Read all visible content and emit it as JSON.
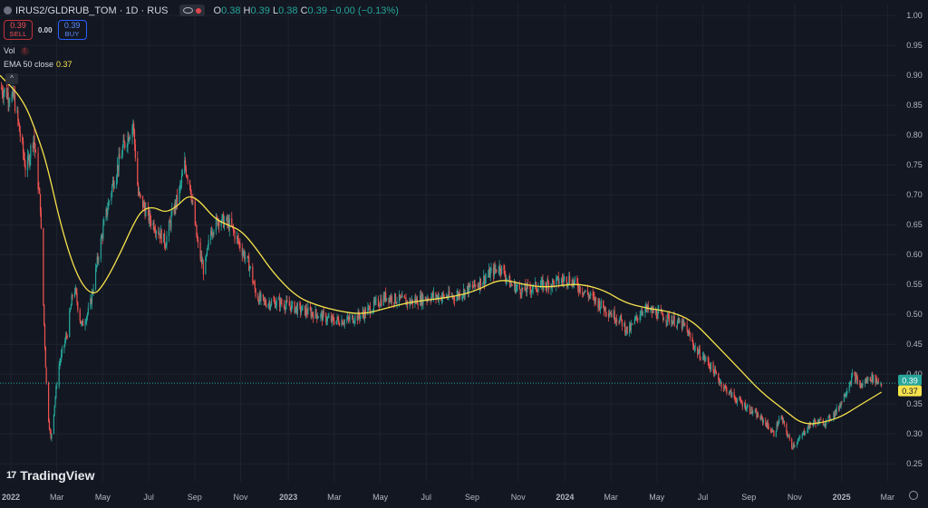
{
  "header": {
    "symbol": "IRUS2/GLDRUB_TOM · 1D · RUS",
    "ohlc": {
      "o_label": "O",
      "o_value": "0.38",
      "h_label": "H",
      "h_value": "0.39",
      "l_label": "L",
      "l_value": "0.38",
      "c_label": "C",
      "c_value": "0.39",
      "change": "−0.00 (−0.13%)"
    }
  },
  "trade": {
    "sell_price": "0.39",
    "sell_label": "SELL",
    "spread": "0.00",
    "buy_price": "0.39",
    "buy_label": "BUY"
  },
  "indicators": {
    "vol_label": "Vol",
    "vol_warning": "!",
    "ema_label": "EMA 50 close",
    "ema_value": "0.37"
  },
  "collapse_glyph": "^",
  "branding": {
    "logo_mark": "17",
    "logo_text": "TradingView"
  },
  "colors": {
    "background": "#131722",
    "grid": "#1e222d",
    "up": "#26a69a",
    "down": "#ef5350",
    "ema": "#f7e34c",
    "axis_text": "#b2b5be",
    "last_price_bg": "#26a69a",
    "ema_badge_bg": "#f7e34c"
  },
  "chart_data": {
    "type": "candlestick",
    "x_ticks": [
      "2022",
      "Mar",
      "May",
      "Jul",
      "Sep",
      "Nov",
      "2023",
      "Mar",
      "May",
      "Jul",
      "Sep",
      "Nov",
      "2024",
      "Mar",
      "May",
      "Jul",
      "Sep",
      "Nov",
      "2025",
      "Mar"
    ],
    "y_ticks": [
      "1.00",
      "0.95",
      "0.90",
      "0.85",
      "0.80",
      "0.75",
      "0.70",
      "0.65",
      "0.60",
      "0.55",
      "0.50",
      "0.45",
      "0.40",
      "0.35",
      "0.30",
      "0.25"
    ],
    "ylim": [
      0.22,
      1.02
    ],
    "x_start": "2022-01-01",
    "x_end": "2025-04-15",
    "last_price_label": "0.39",
    "ema_price_label": "0.37",
    "last_price": 0.385,
    "ema_last": 0.37,
    "price_path": [
      [
        "2022-01-01",
        0.88
      ],
      [
        "2022-01-20",
        0.86
      ],
      [
        "2022-02-05",
        0.74
      ],
      [
        "2022-02-15",
        0.8
      ],
      [
        "2022-02-24",
        0.68
      ],
      [
        "2022-02-27",
        0.55
      ],
      [
        "2022-03-05",
        0.35
      ],
      [
        "2022-03-10",
        0.29
      ],
      [
        "2022-03-20",
        0.41
      ],
      [
        "2022-04-01",
        0.47
      ],
      [
        "2022-04-10",
        0.55
      ],
      [
        "2022-04-20",
        0.48
      ],
      [
        "2022-05-01",
        0.51
      ],
      [
        "2022-05-10",
        0.58
      ],
      [
        "2022-05-20",
        0.65
      ],
      [
        "2022-06-01",
        0.72
      ],
      [
        "2022-06-15",
        0.78
      ],
      [
        "2022-06-28",
        0.82
      ],
      [
        "2022-07-05",
        0.7
      ],
      [
        "2022-07-20",
        0.66
      ],
      [
        "2022-08-01",
        0.64
      ],
      [
        "2022-08-10",
        0.62
      ],
      [
        "2022-08-20",
        0.67
      ],
      [
        "2022-08-28",
        0.7
      ],
      [
        "2022-09-05",
        0.75
      ],
      [
        "2022-09-12",
        0.72
      ],
      [
        "2022-09-22",
        0.62
      ],
      [
        "2022-10-01",
        0.57
      ],
      [
        "2022-10-10",
        0.64
      ],
      [
        "2022-10-20",
        0.66
      ],
      [
        "2022-11-05",
        0.65
      ],
      [
        "2022-11-20",
        0.61
      ],
      [
        "2022-12-01",
        0.58
      ],
      [
        "2022-12-10",
        0.53
      ],
      [
        "2022-12-20",
        0.52
      ],
      [
        "2023-01-10",
        0.52
      ],
      [
        "2023-02-01",
        0.51
      ],
      [
        "2023-03-01",
        0.5
      ],
      [
        "2023-03-20",
        0.49
      ],
      [
        "2023-04-10",
        0.49
      ],
      [
        "2023-05-01",
        0.5
      ],
      [
        "2023-06-01",
        0.53
      ],
      [
        "2023-07-01",
        0.52
      ],
      [
        "2023-08-01",
        0.53
      ],
      [
        "2023-09-01",
        0.53
      ],
      [
        "2023-10-01",
        0.55
      ],
      [
        "2023-10-20",
        0.57
      ],
      [
        "2023-11-01",
        0.58
      ],
      [
        "2023-11-15",
        0.55
      ],
      [
        "2023-12-01",
        0.54
      ],
      [
        "2024-01-01",
        0.55
      ],
      [
        "2024-02-01",
        0.56
      ],
      [
        "2024-02-20",
        0.54
      ],
      [
        "2024-03-20",
        0.51
      ],
      [
        "2024-04-10",
        0.49
      ],
      [
        "2024-04-20",
        0.47
      ],
      [
        "2024-05-10",
        0.51
      ],
      [
        "2024-06-01",
        0.5
      ],
      [
        "2024-06-20",
        0.49
      ],
      [
        "2024-07-05",
        0.48
      ],
      [
        "2024-07-20",
        0.44
      ],
      [
        "2024-08-05",
        0.42
      ],
      [
        "2024-08-25",
        0.38
      ],
      [
        "2024-09-10",
        0.36
      ],
      [
        "2024-10-01",
        0.34
      ],
      [
        "2024-10-20",
        0.32
      ],
      [
        "2024-11-01",
        0.3
      ],
      [
        "2024-11-10",
        0.33
      ],
      [
        "2024-11-25",
        0.28
      ],
      [
        "2024-12-05",
        0.29
      ],
      [
        "2024-12-15",
        0.31
      ],
      [
        "2024-12-25",
        0.32
      ],
      [
        "2025-01-10",
        0.32
      ],
      [
        "2025-01-25",
        0.34
      ],
      [
        "2025-02-05",
        0.37
      ],
      [
        "2025-02-15",
        0.4
      ],
      [
        "2025-02-25",
        0.38
      ],
      [
        "2025-03-10",
        0.395
      ],
      [
        "2025-03-25",
        0.385
      ]
    ],
    "ema_path": [
      [
        "2022-01-01",
        0.9
      ],
      [
        "2022-02-01",
        0.86
      ],
      [
        "2022-02-20",
        0.8
      ],
      [
        "2022-03-05",
        0.75
      ],
      [
        "2022-03-25",
        0.64
      ],
      [
        "2022-04-15",
        0.56
      ],
      [
        "2022-05-05",
        0.53
      ],
      [
        "2022-05-20",
        0.55
      ],
      [
        "2022-06-10",
        0.6
      ],
      [
        "2022-06-28",
        0.65
      ],
      [
        "2022-07-10",
        0.675
      ],
      [
        "2022-07-25",
        0.68
      ],
      [
        "2022-08-10",
        0.67
      ],
      [
        "2022-08-25",
        0.68
      ],
      [
        "2022-09-10",
        0.7
      ],
      [
        "2022-09-25",
        0.69
      ],
      [
        "2022-10-15",
        0.66
      ],
      [
        "2022-11-01",
        0.65
      ],
      [
        "2022-11-20",
        0.64
      ],
      [
        "2022-12-10",
        0.61
      ],
      [
        "2023-01-01",
        0.57
      ],
      [
        "2023-02-01",
        0.53
      ],
      [
        "2023-03-01",
        0.515
      ],
      [
        "2023-04-01",
        0.505
      ],
      [
        "2023-05-01",
        0.5
      ],
      [
        "2023-06-01",
        0.51
      ],
      [
        "2023-07-01",
        0.52
      ],
      [
        "2023-08-01",
        0.525
      ],
      [
        "2023-09-01",
        0.53
      ],
      [
        "2023-10-01",
        0.54
      ],
      [
        "2023-11-01",
        0.56
      ],
      [
        "2023-12-01",
        0.55
      ],
      [
        "2024-01-01",
        0.545
      ],
      [
        "2024-02-01",
        0.55
      ],
      [
        "2024-02-20",
        0.55
      ],
      [
        "2024-03-20",
        0.54
      ],
      [
        "2024-04-15",
        0.52
      ],
      [
        "2024-05-15",
        0.51
      ],
      [
        "2024-06-15",
        0.505
      ],
      [
        "2024-07-15",
        0.49
      ],
      [
        "2024-08-15",
        0.45
      ],
      [
        "2024-09-15",
        0.41
      ],
      [
        "2024-10-15",
        0.37
      ],
      [
        "2024-11-15",
        0.34
      ],
      [
        "2024-12-10",
        0.315
      ],
      [
        "2025-01-10",
        0.32
      ],
      [
        "2025-02-01",
        0.33
      ],
      [
        "2025-02-20",
        0.345
      ],
      [
        "2025-03-25",
        0.37
      ]
    ]
  }
}
